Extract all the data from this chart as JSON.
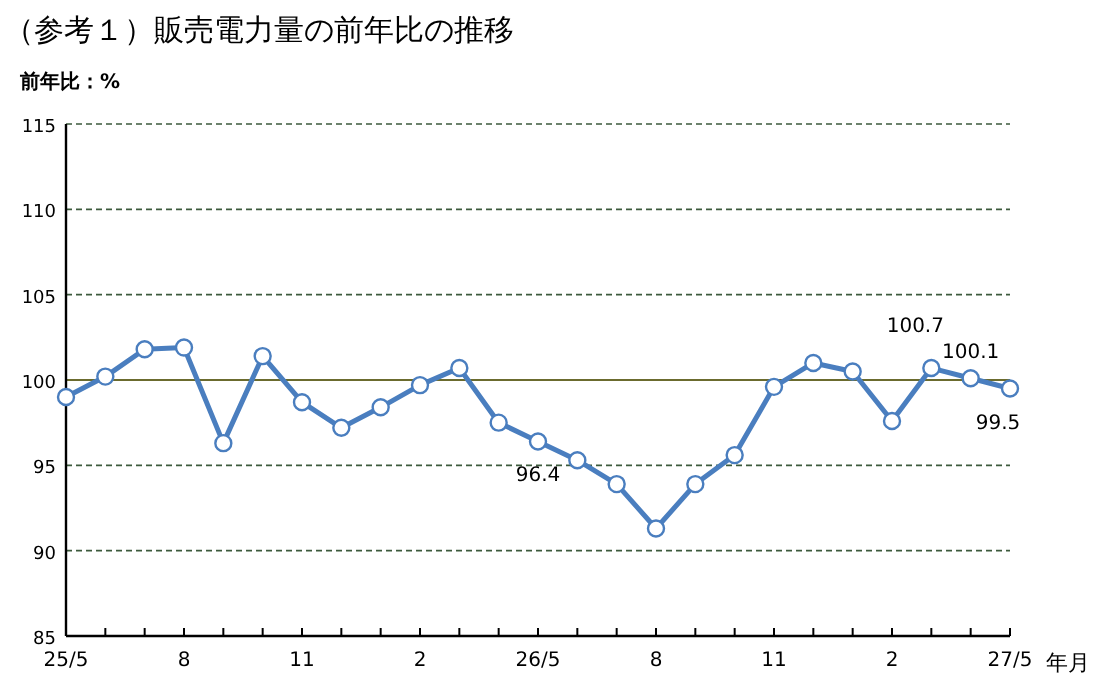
{
  "chart_data": {
    "type": "line",
    "title": "（参考１）販売電力量の前年比の推移",
    "ylabel": "前年比：%",
    "xlabel": "年月",
    "categories": [
      "25/5",
      null,
      null,
      "8",
      null,
      null,
      "11",
      null,
      null,
      "2",
      null,
      null,
      "26/5",
      null,
      null,
      "8",
      null,
      null,
      "11",
      null,
      null,
      "2",
      null,
      null,
      "27/5"
    ],
    "series": [
      {
        "color": "#4a7ebf",
        "values": [
          99.0,
          100.2,
          101.8,
          101.9,
          96.3,
          101.4,
          98.7,
          97.2,
          98.4,
          99.7,
          100.7,
          97.5,
          96.4,
          95.3,
          93.9,
          91.3,
          93.9,
          95.6,
          99.6,
          101.0,
          100.5,
          97.6,
          100.7,
          100.1,
          99.5
        ],
        "value_labels": [
          null,
          null,
          null,
          null,
          null,
          null,
          null,
          null,
          null,
          null,
          null,
          null,
          "96.4",
          null,
          null,
          null,
          null,
          null,
          null,
          null,
          null,
          null,
          "100.7",
          "100.1",
          "99.5"
        ]
      }
    ],
    "ylim": [
      85,
      115
    ],
    "yticks": [
      85,
      90,
      95,
      100,
      105,
      110,
      115
    ],
    "grid": "y",
    "marker": "circle",
    "line_style": "solid",
    "ref_lines": [
      {
        "axis": "y",
        "value": 100,
        "color": "#6b6b2e",
        "line_style": "solid"
      }
    ]
  }
}
